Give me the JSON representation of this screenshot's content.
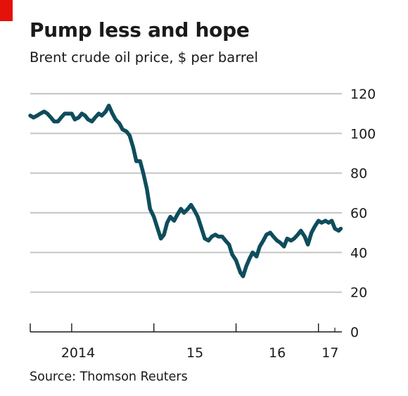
{
  "title": "Pump less and hope",
  "subtitle": "Brent crude oil price, $ per barrel",
  "source": "Source: Thomson Reuters",
  "colors": {
    "line": "#0e4d5c",
    "grid": "#c8c8c8",
    "accent": "#e3120b",
    "text": "#1a1a1a"
  },
  "chart_data": {
    "type": "line",
    "title": "Pump less and hope",
    "ylabel": "Brent crude oil price, $ per barrel",
    "ylim": [
      0,
      120
    ],
    "yticks": [
      0,
      20,
      40,
      60,
      80,
      100,
      120
    ],
    "grid": true,
    "y_axis_side": "right",
    "xlim": [
      "2013-07-01",
      "2017-04-15"
    ],
    "xticks": [
      {
        "label": "2014",
        "date": "2014-01-01"
      },
      {
        "label": "15",
        "date": "2015-01-01"
      },
      {
        "label": "16",
        "date": "2016-01-01"
      },
      {
        "label": "17",
        "date": "2017-01-01"
      }
    ],
    "x_boundary_marks": [
      "2013-01-01",
      "2014-01-01",
      "2015-01-01",
      "2016-01-01",
      "2017-01-01"
    ],
    "series": [
      {
        "x": [
          "2013-07-01",
          "2013-07-15",
          "2013-08-01",
          "2013-08-15",
          "2013-09-01",
          "2013-09-15",
          "2013-10-01",
          "2013-10-15",
          "2013-11-01",
          "2013-11-15",
          "2013-12-01",
          "2013-12-15",
          "2014-01-01",
          "2014-01-15",
          "2014-02-01",
          "2014-02-15",
          "2014-03-01",
          "2014-03-15",
          "2014-04-01",
          "2014-04-15",
          "2014-05-01",
          "2014-05-15",
          "2014-06-01",
          "2014-06-15",
          "2014-07-01",
          "2014-07-15",
          "2014-08-01",
          "2014-08-15",
          "2014-09-01",
          "2014-09-15",
          "2014-10-01",
          "2014-10-15",
          "2014-11-01",
          "2014-11-15",
          "2014-12-01",
          "2014-12-15",
          "2015-01-01",
          "2015-01-15",
          "2015-02-01",
          "2015-02-15",
          "2015-03-01",
          "2015-03-15",
          "2015-04-01",
          "2015-04-15",
          "2015-05-01",
          "2015-05-15",
          "2015-06-01",
          "2015-06-15",
          "2015-07-01",
          "2015-07-15",
          "2015-08-01",
          "2015-08-15",
          "2015-09-01",
          "2015-09-15",
          "2015-10-01",
          "2015-10-15",
          "2015-11-01",
          "2015-11-15",
          "2015-12-01",
          "2015-12-15",
          "2016-01-01",
          "2016-01-20",
          "2016-02-01",
          "2016-02-15",
          "2016-03-01",
          "2016-03-15",
          "2016-04-01",
          "2016-04-15",
          "2016-05-01",
          "2016-05-15",
          "2016-06-01",
          "2016-06-15",
          "2016-07-01",
          "2016-07-15",
          "2016-08-01",
          "2016-08-15",
          "2016-09-01",
          "2016-09-15",
          "2016-10-01",
          "2016-10-15",
          "2016-11-01",
          "2016-11-15",
          "2016-12-01",
          "2016-12-15",
          "2017-01-01",
          "2017-01-15",
          "2017-02-01",
          "2017-02-15",
          "2017-03-01",
          "2017-03-15",
          "2017-04-01",
          "2017-04-10"
        ],
        "values": [
          109,
          108,
          109,
          110,
          111,
          110,
          108,
          106,
          106,
          108,
          110,
          110,
          110,
          107,
          108,
          110,
          109,
          107,
          106,
          108,
          110,
          109,
          111,
          114,
          110,
          107,
          105,
          102,
          101,
          99,
          93,
          86,
          86,
          80,
          72,
          62,
          58,
          53,
          47,
          49,
          55,
          58,
          56,
          59,
          62,
          60,
          62,
          64,
          61,
          58,
          52,
          47,
          46,
          48,
          49,
          48,
          48,
          46,
          44,
          39,
          36,
          30,
          28,
          33,
          37,
          40,
          38,
          43,
          46,
          49,
          50,
          48,
          46,
          45,
          43,
          47,
          46,
          47,
          49,
          51,
          48,
          44,
          50,
          53,
          56,
          55,
          56,
          55,
          56,
          52,
          51,
          52
        ]
      }
    ]
  }
}
